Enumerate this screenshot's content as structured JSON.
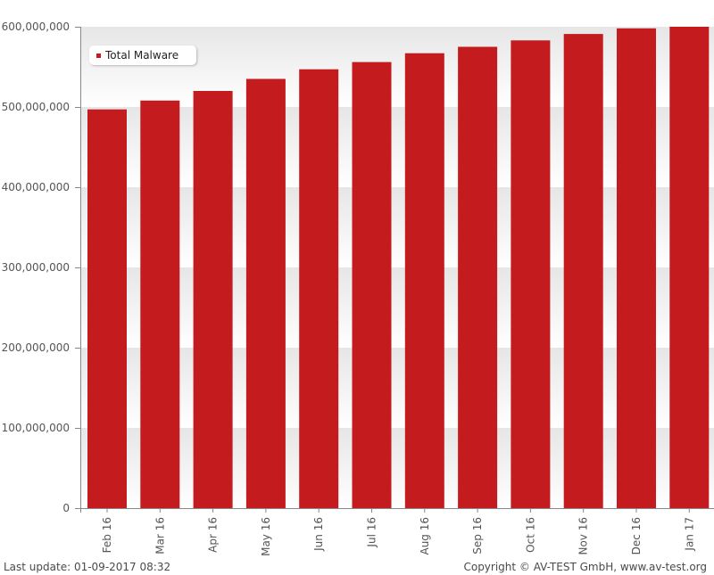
{
  "chart_data": {
    "type": "bar",
    "categories": [
      "Feb 16",
      "Mar 16",
      "Apr 16",
      "May 16",
      "Jun 16",
      "Jul 16",
      "Aug 16",
      "Sep 16",
      "Oct 16",
      "Nov 16",
      "Dec 16",
      "Jan 17"
    ],
    "series": [
      {
        "name": "Total Malware",
        "values": [
          497000000,
          508000000,
          520000000,
          535000000,
          547000000,
          556000000,
          567000000,
          575000000,
          583000000,
          591000000,
          598000000,
          600000000
        ],
        "color": "#c41c1e"
      }
    ],
    "yticks": [
      "0",
      "100,000,000",
      "200,000,000",
      "300,000,000",
      "400,000,000",
      "500,000,000",
      "600,000,000"
    ],
    "ylim": [
      0,
      600000000
    ],
    "legend_position": "top-left",
    "grid": "alternating-bands"
  },
  "footer": {
    "last_update": "Last update: 01-09-2017 08:32",
    "copyright": "Copyright © AV-TEST GmbH, www.av-test.org"
  }
}
